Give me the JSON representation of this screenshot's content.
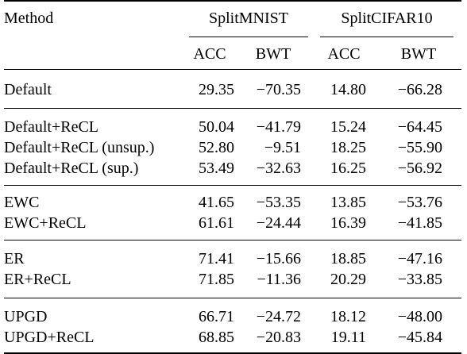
{
  "header": {
    "method_label": "Method",
    "group1": "SplitMNIST",
    "group2": "SplitCIFAR10",
    "sub_acc": "ACC",
    "sub_bwt": "BWT"
  },
  "rows": [
    {
      "method": "Default",
      "mnist_acc": "29.35",
      "mnist_bwt": "−70.35",
      "cifar_acc": "14.80",
      "cifar_bwt": "−66.28",
      "bold": []
    },
    {
      "method": "Default+ReCL",
      "mnist_acc": "50.04",
      "mnist_bwt": "−41.79",
      "cifar_acc": "15.24",
      "cifar_bwt": "−64.45",
      "bold": []
    },
    {
      "method": "Default+ReCL (unsup.)",
      "mnist_acc": "52.80",
      "mnist_bwt": "−9.51",
      "cifar_acc": "18.25",
      "cifar_bwt": "−55.90",
      "bold": []
    },
    {
      "method": "Default+ReCL (sup.)",
      "mnist_acc": "53.49",
      "mnist_bwt": "−32.63",
      "cifar_acc": "16.25",
      "cifar_bwt": "−56.92",
      "bold": []
    },
    {
      "method": "EWC",
      "mnist_acc": "41.65",
      "mnist_bwt": "−53.35",
      "cifar_acc": "13.85",
      "cifar_bwt": "−53.76",
      "bold": []
    },
    {
      "method": "EWC+ReCL",
      "mnist_acc": "61.61",
      "mnist_bwt": "−24.44",
      "cifar_acc": "16.39",
      "cifar_bwt": "−41.85",
      "bold": [
        "mnist_acc",
        "cifar_acc"
      ]
    },
    {
      "method": "ER",
      "mnist_acc": "71.41",
      "mnist_bwt": "−15.66",
      "cifar_acc": "18.85",
      "cifar_bwt": "−47.16",
      "bold": []
    },
    {
      "method": "ER+ReCL",
      "mnist_acc": "71.85",
      "mnist_bwt": "−11.36",
      "cifar_acc": "20.29",
      "cifar_bwt": "−33.85",
      "bold": [
        "mnist_acc",
        "cifar_acc"
      ]
    },
    {
      "method": "UPGD",
      "mnist_acc": "66.71",
      "mnist_bwt": "−24.72",
      "cifar_acc": "18.12",
      "cifar_bwt": "−48.00",
      "bold": []
    },
    {
      "method": "UPGD+ReCL",
      "mnist_acc": "68.85",
      "mnist_bwt": "−20.83",
      "cifar_acc": "19.11",
      "cifar_bwt": "−45.84",
      "bold": [
        "mnist_acc",
        "cifar_acc"
      ]
    }
  ]
}
